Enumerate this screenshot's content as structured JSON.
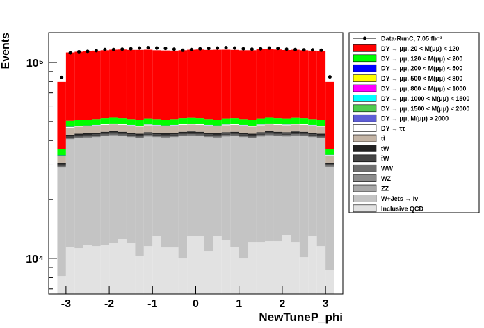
{
  "chart_data": {
    "type": "histogram",
    "stacked": true,
    "log_y": true,
    "x_label": "NewTuneP_phi",
    "y_label": "Events",
    "xlim": [
      -3.4,
      3.4
    ],
    "xticks": [
      -3,
      -2,
      -1,
      0,
      1,
      2,
      3
    ],
    "ylim": [
      6600,
      142000
    ],
    "yticks": [
      {
        "value": 10000,
        "label": "10⁴"
      },
      {
        "value": 100000,
        "label": "10⁵"
      }
    ],
    "yminorticks": [
      7000,
      8000,
      9000,
      20000,
      30000,
      40000,
      50000,
      60000,
      70000,
      80000,
      90000
    ],
    "legend": "outside-right",
    "bins": [
      -3.2,
      -3.0,
      -2.8,
      -2.6,
      -2.4,
      -2.2,
      -2.0,
      -1.8,
      -1.6,
      -1.4,
      -1.2,
      -1.0,
      -0.8,
      -0.6,
      -0.4,
      -0.2,
      0,
      0.2,
      0.4,
      0.6,
      0.8,
      1.0,
      1.2,
      1.4,
      1.6,
      1.8,
      2.0,
      2.2,
      2.4,
      2.6,
      2.8,
      3.0,
      3.2
    ],
    "series": [
      {
        "name": "Data-RunC, 7.05 fb⁻¹",
        "color": "#000000",
        "style": "points",
        "values": [
          84000,
          112000,
          113500,
          114000,
          115000,
          116500,
          116500,
          117000,
          117500,
          118500,
          119000,
          118500,
          118000,
          117000,
          115500,
          116500,
          117500,
          118000,
          118500,
          119000,
          118500,
          117500,
          117000,
          117500,
          118500,
          118000,
          117000,
          116500,
          116000,
          116000,
          115500,
          84500
        ]
      },
      {
        "name": "DY → μμ, 20 < M(μμ) <  120",
        "color": "#ff0000",
        "values": [
          43500,
          62000,
          62500,
          63000,
          63500,
          63500,
          64000,
          64500,
          64500,
          65000,
          64500,
          64000,
          64000,
          63500,
          63500,
          64000,
          64500,
          64500,
          65000,
          64500,
          64000,
          64000,
          64500,
          65000,
          65000,
          64500,
          64000,
          64000,
          63500,
          63500,
          63000,
          43300
        ]
      },
      {
        "name": "DY → μμ, 120 < M(μμ) <  200",
        "color": "#00ff00",
        "values": [
          2500,
          3500,
          3500,
          3500,
          3500,
          3500,
          3500,
          3500,
          3500,
          3500,
          3500,
          3500,
          3500,
          3500,
          3500,
          3500,
          3500,
          3500,
          3500,
          3500,
          3500,
          3500,
          3500,
          3500,
          3500,
          3500,
          3500,
          3500,
          3500,
          3500,
          3500,
          2500
        ]
      },
      {
        "name": "DY → μμ, 200 < M(μμ) <  500",
        "color": "#0000ff",
        "values": [
          100,
          100,
          100,
          100,
          100,
          100,
          100,
          100,
          100,
          100,
          100,
          100,
          100,
          100,
          100,
          100,
          100,
          100,
          100,
          100,
          100,
          100,
          100,
          100,
          100,
          100,
          100,
          100,
          100,
          100,
          100,
          100
        ]
      },
      {
        "name": "DY → μμ, 500 < M(μμ) <  800",
        "color": "#ffff00",
        "values": [
          20,
          20,
          20,
          20,
          20,
          20,
          20,
          20,
          20,
          20,
          20,
          20,
          20,
          20,
          20,
          20,
          20,
          20,
          20,
          20,
          20,
          20,
          20,
          20,
          20,
          20,
          20,
          20,
          20,
          20,
          20,
          20
        ]
      },
      {
        "name": "DY → μμ, 800 < M(μμ) < 1000",
        "color": "#ff00ff",
        "values": [
          5,
          5,
          5,
          5,
          5,
          5,
          5,
          5,
          5,
          5,
          5,
          5,
          5,
          5,
          5,
          5,
          5,
          5,
          5,
          5,
          5,
          5,
          5,
          5,
          5,
          5,
          5,
          5,
          5,
          5,
          5,
          5
        ]
      },
      {
        "name": "DY → μμ, 1000 < M(μμ) < 1500",
        "color": "#00ffff",
        "values": [
          3,
          3,
          3,
          3,
          3,
          3,
          3,
          3,
          3,
          3,
          3,
          3,
          3,
          3,
          3,
          3,
          3,
          3,
          3,
          3,
          3,
          3,
          3,
          3,
          3,
          3,
          3,
          3,
          3,
          3,
          3,
          3
        ]
      },
      {
        "name": "DY → μμ, 1500 < M(μμ) < 2000",
        "color": "#4fcc4f",
        "values": [
          1,
          1,
          1,
          1,
          1,
          1,
          1,
          1,
          1,
          1,
          1,
          1,
          1,
          1,
          1,
          1,
          1,
          1,
          1,
          1,
          1,
          1,
          1,
          1,
          1,
          1,
          1,
          1,
          1,
          1,
          1,
          1
        ]
      },
      {
        "name": "DY → μμ, M(μμ) > 2000",
        "color": "#5e5ed6",
        "values": [
          1,
          1,
          1,
          1,
          1,
          1,
          1,
          1,
          1,
          1,
          1,
          1,
          1,
          1,
          1,
          1,
          1,
          1,
          1,
          1,
          1,
          1,
          1,
          1,
          1,
          1,
          1,
          1,
          1,
          1,
          1,
          1
        ]
      },
      {
        "name": "DY → ττ",
        "color": "#ffffff",
        "values": [
          250,
          350,
          350,
          350,
          350,
          350,
          350,
          350,
          350,
          350,
          350,
          350,
          350,
          350,
          350,
          350,
          350,
          350,
          350,
          350,
          350,
          350,
          350,
          350,
          350,
          350,
          350,
          350,
          350,
          350,
          350,
          250
        ]
      },
      {
        "name": "tt̄",
        "color": "#c4b5a6",
        "values": [
          2600,
          3700,
          3700,
          3700,
          3700,
          3700,
          3700,
          3700,
          3700,
          3700,
          3700,
          3700,
          3700,
          3700,
          3700,
          3700,
          3700,
          3700,
          3700,
          3700,
          3700,
          3700,
          3700,
          3700,
          3700,
          3700,
          3700,
          3700,
          3700,
          3700,
          3700,
          2600
        ]
      },
      {
        "name": "tW",
        "color": "#222222",
        "values": [
          500,
          700,
          700,
          700,
          700,
          700,
          700,
          700,
          700,
          700,
          700,
          700,
          700,
          700,
          700,
          700,
          700,
          700,
          700,
          700,
          700,
          700,
          700,
          700,
          700,
          700,
          700,
          700,
          700,
          700,
          700,
          500
        ]
      },
      {
        "name": "t̄W",
        "color": "#444444",
        "values": [
          500,
          700,
          700,
          700,
          700,
          700,
          700,
          700,
          700,
          700,
          700,
          700,
          700,
          700,
          700,
          700,
          700,
          700,
          700,
          700,
          700,
          700,
          700,
          700,
          700,
          700,
          700,
          700,
          700,
          700,
          700,
          500
        ]
      },
      {
        "name": "WW",
        "color": "#6e6e6e",
        "values": [
          360,
          500,
          500,
          500,
          500,
          500,
          500,
          500,
          500,
          500,
          500,
          500,
          500,
          500,
          500,
          500,
          500,
          500,
          500,
          500,
          500,
          500,
          500,
          500,
          500,
          500,
          500,
          500,
          500,
          500,
          500,
          360
        ]
      },
      {
        "name": "WZ",
        "color": "#8c8c8c",
        "values": [
          180,
          250,
          250,
          250,
          250,
          250,
          250,
          250,
          250,
          250,
          250,
          250,
          250,
          250,
          250,
          250,
          250,
          250,
          250,
          250,
          250,
          250,
          250,
          250,
          250,
          250,
          250,
          250,
          250,
          250,
          250,
          180
        ]
      },
      {
        "name": "ZZ",
        "color": "#a8a8a8",
        "values": [
          110,
          150,
          150,
          150,
          150,
          150,
          150,
          150,
          150,
          150,
          150,
          150,
          150,
          150,
          150,
          150,
          150,
          150,
          150,
          150,
          150,
          150,
          150,
          150,
          150,
          150,
          150,
          150,
          150,
          150,
          150,
          110
        ]
      },
      {
        "name": "W+Jets → lν",
        "color": "#c4c4c4",
        "values": [
          20850,
          29010,
          29700,
          29430,
          29920,
          30320,
          30330,
          29430,
          29430,
          30670,
          30220,
          28510,
          29810,
          30110,
          31920,
          29210,
          29010,
          30560,
          28210,
          29330,
          30510,
          31420,
          28840,
          29640,
          30040,
          29740,
          28600,
          30040,
          31840,
          28510,
          29420,
          20430
        ]
      },
      {
        "name": "Inclusive QCD",
        "color": "#e2e2e2",
        "values": [
          8150,
          11490,
          11300,
          11770,
          11580,
          11680,
          11970,
          12570,
          12070,
          10330,
          11580,
          12990,
          11390,
          11390,
          10080,
          12990,
          12990,
          10940,
          12990,
          12470,
          11490,
          10080,
          12160,
          12160,
          12260,
          12260,
          13200,
          12160,
          10160,
          12990,
          11580,
          8770
        ]
      }
    ]
  }
}
